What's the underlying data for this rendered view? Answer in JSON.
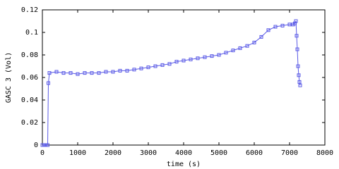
{
  "chart_data": {
    "type": "line",
    "x_label": "time (s)",
    "y_label": "GASC 3 (Vol)",
    "x": [
      0,
      50,
      100,
      150,
      170,
      200,
      400,
      600,
      800,
      1000,
      1200,
      1400,
      1600,
      1800,
      2000,
      2200,
      2400,
      2600,
      2800,
      3000,
      3200,
      3400,
      3600,
      3800,
      4000,
      4200,
      4400,
      4600,
      4800,
      5000,
      5200,
      5400,
      5600,
      5800,
      6000,
      6200,
      6400,
      6600,
      6800,
      7000,
      7100,
      7150,
      7180,
      7200,
      7220,
      7240,
      7260,
      7280,
      7300
    ],
    "series": [
      {
        "color": "#5a5ae6",
        "values": [
          0,
          0,
          0,
          0,
          0.055,
          0.064,
          0.065,
          0.064,
          0.064,
          0.063,
          0.064,
          0.064,
          0.064,
          0.065,
          0.065,
          0.066,
          0.066,
          0.067,
          0.068,
          0.069,
          0.07,
          0.071,
          0.072,
          0.074,
          0.075,
          0.076,
          0.077,
          0.078,
          0.079,
          0.08,
          0.082,
          0.084,
          0.086,
          0.088,
          0.091,
          0.096,
          0.102,
          0.105,
          0.106,
          0.107,
          0.107,
          0.108,
          0.11,
          0.097,
          0.085,
          0.07,
          0.062,
          0.056,
          0.053
        ]
      }
    ],
    "xlim": [
      0,
      8000
    ],
    "xticks": [
      0,
      1000,
      2000,
      3000,
      4000,
      5000,
      6000,
      7000,
      8000
    ],
    "ylim": [
      0,
      0.12
    ],
    "yticks": [
      0,
      0.02,
      0.04,
      0.06,
      0.08,
      0.1,
      0.12
    ]
  }
}
